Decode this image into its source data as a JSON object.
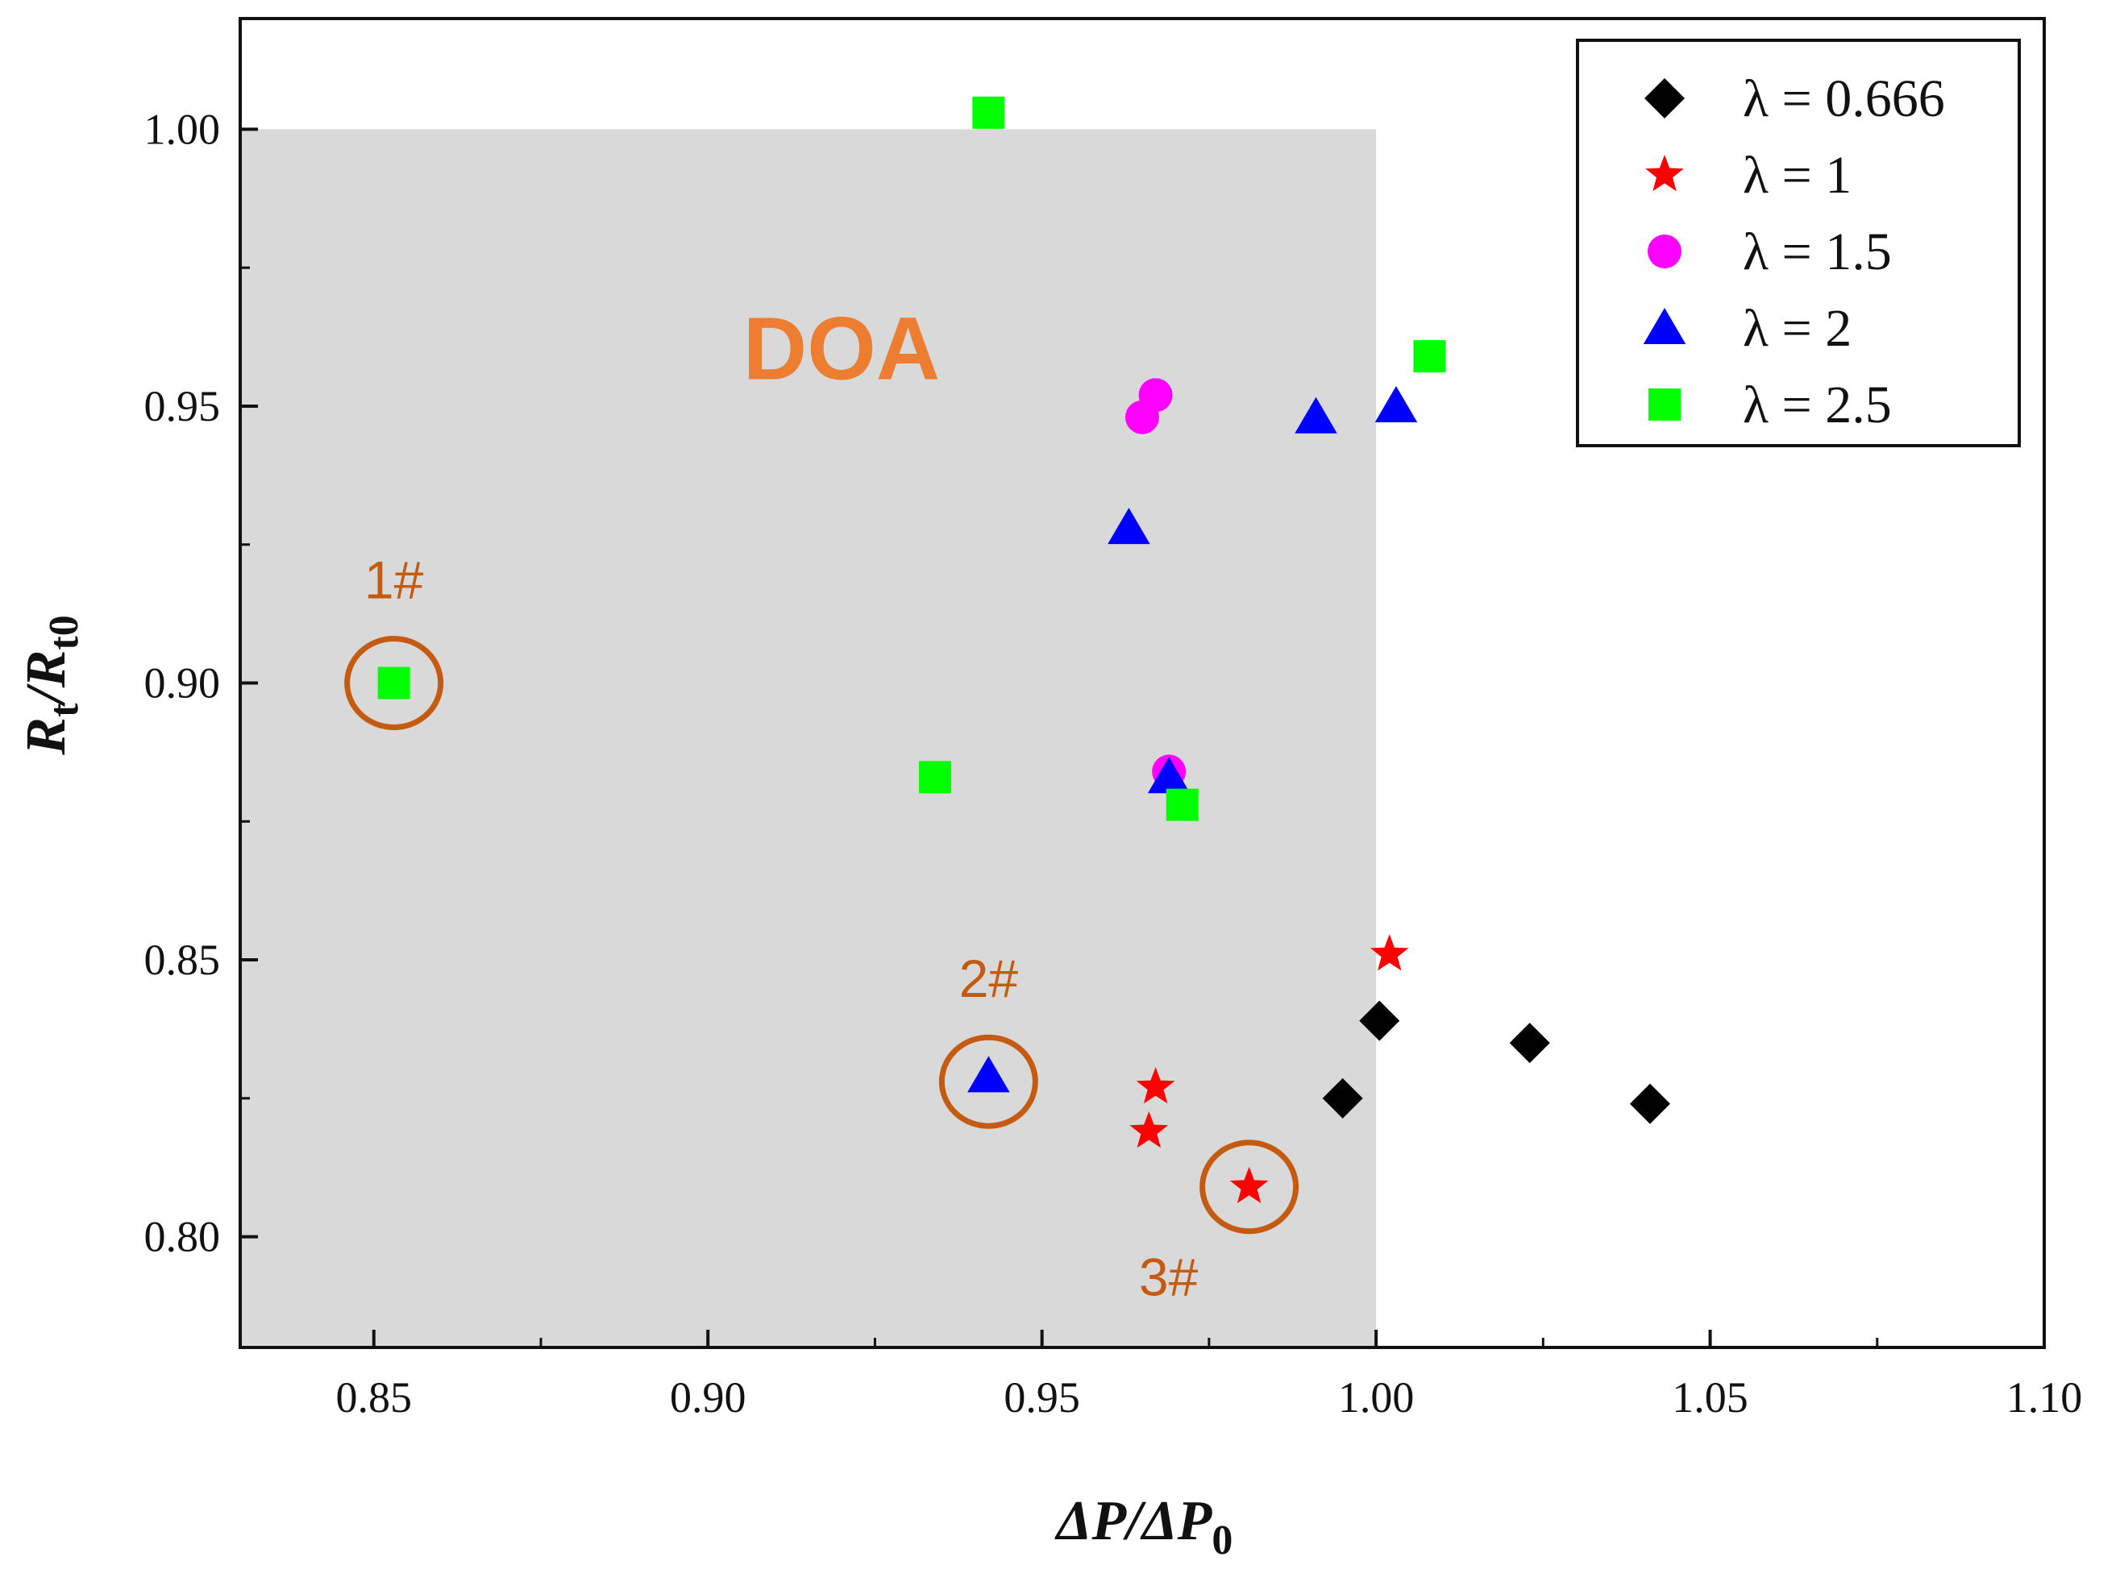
{
  "chart_data": {
    "type": "scatter",
    "title": "",
    "xlim": [
      0.83,
      1.1
    ],
    "ylim": [
      0.78,
      1.02
    ],
    "x_ticks": [
      "0.85",
      "0.90",
      "0.95",
      "1.00",
      "1.05",
      "1.10"
    ],
    "y_ticks": [
      "0.80",
      "0.85",
      "0.90",
      "0.95",
      "1.00"
    ],
    "xlabel": {
      "main": "ΔP/ΔP",
      "sub": "0"
    },
    "ylabel": {
      "main": "R",
      "sub1": "t",
      "mid": "/R",
      "sub2": "t0"
    },
    "grid": false,
    "legend_position": "top-right",
    "shaded_region": {
      "label": "DOA",
      "x": [
        0.83,
        1.0
      ],
      "y": [
        0.78,
        1.0
      ],
      "fill": "#d9d9d9",
      "label_color": "#ed7d31"
    },
    "annotations": [
      {
        "label": "1#",
        "x": 0.853,
        "y": 0.9,
        "color": "#c55a11"
      },
      {
        "label": "2#",
        "x": 0.942,
        "y": 0.828,
        "color": "#c55a11"
      },
      {
        "label": "3#",
        "x": 0.981,
        "y": 0.809,
        "color": "#c55a11"
      }
    ],
    "series": [
      {
        "name": "λ = 0.666",
        "marker": "diamond",
        "color": "#000000",
        "points": [
          [
            0.995,
            0.825
          ],
          [
            1.0005,
            0.839
          ],
          [
            1.023,
            0.835
          ],
          [
            1.041,
            0.824
          ]
        ]
      },
      {
        "name": "λ = 1",
        "marker": "star",
        "color": "#ff0000",
        "points": [
          [
            1.002,
            0.851
          ],
          [
            0.967,
            0.827
          ],
          [
            0.966,
            0.819
          ],
          [
            0.981,
            0.809
          ]
        ]
      },
      {
        "name": "λ = 1.5",
        "marker": "circle",
        "color": "#ff00ff",
        "points": [
          [
            0.965,
            0.948
          ],
          [
            0.967,
            0.952
          ],
          [
            0.969,
            0.884
          ]
        ]
      },
      {
        "name": "λ = 2",
        "marker": "triangle",
        "color": "#0000ff",
        "points": [
          [
            0.991,
            0.948
          ],
          [
            1.003,
            0.95
          ],
          [
            0.963,
            0.928
          ],
          [
            0.969,
            0.883
          ],
          [
            0.942,
            0.829
          ]
        ]
      },
      {
        "name": "λ = 2.5",
        "marker": "square",
        "color": "#00ff00",
        "points": [
          [
            0.942,
            1.003
          ],
          [
            1.008,
            0.959
          ],
          [
            0.853,
            0.9
          ],
          [
            0.934,
            0.883
          ],
          [
            0.971,
            0.878
          ]
        ]
      }
    ]
  }
}
